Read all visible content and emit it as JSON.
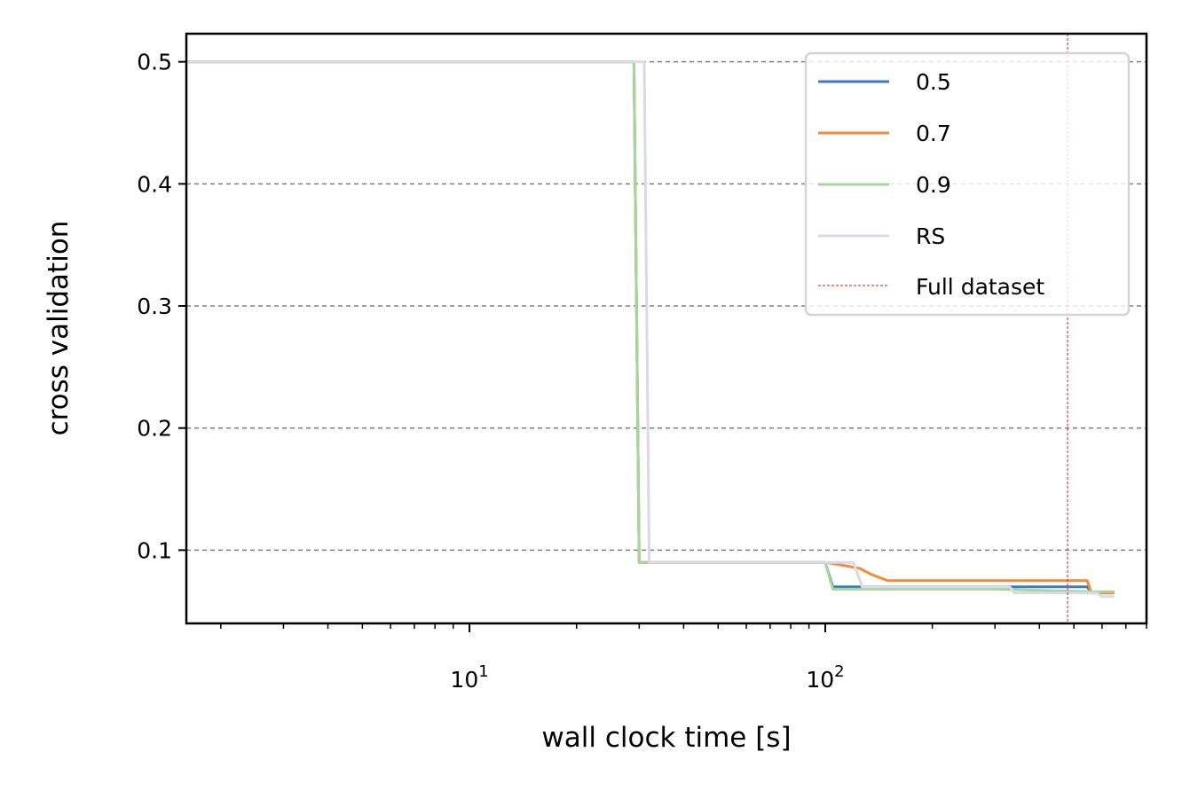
{
  "chart_data": {
    "type": "line",
    "xlabel": "wall clock time [s]",
    "ylabel": "cross validation",
    "xscale": "log",
    "xlim": [
      1.6,
      800
    ],
    "ylim": [
      0.04,
      0.523
    ],
    "grid": "y-dashed",
    "legend_position": "top-right",
    "x_tick_labels": [
      {
        "value": 10,
        "base": "10",
        "exp": "1"
      },
      {
        "value": 100,
        "base": "10",
        "exp": "2"
      }
    ],
    "y_ticks": [
      0.1,
      0.2,
      0.3,
      0.4,
      0.5
    ],
    "y_tick_labels": [
      "0.1",
      "0.2",
      "0.3",
      "0.4",
      "0.5"
    ],
    "series": [
      {
        "name": "0.5",
        "color": "#3a7dbd",
        "points": [
          [
            1.6,
            0.5
          ],
          [
            29,
            0.5
          ],
          [
            30,
            0.09
          ],
          [
            100,
            0.09
          ],
          [
            105,
            0.07
          ],
          [
            300,
            0.07
          ],
          [
            545,
            0.07
          ],
          [
            560,
            0.065
          ],
          [
            650,
            0.065
          ]
        ]
      },
      {
        "name": "0.7",
        "color": "#f58a3a",
        "points": [
          [
            1.6,
            0.5
          ],
          [
            29,
            0.5
          ],
          [
            30,
            0.09
          ],
          [
            100,
            0.09
          ],
          [
            110,
            0.088
          ],
          [
            125,
            0.085
          ],
          [
            135,
            0.08
          ],
          [
            150,
            0.075
          ],
          [
            545,
            0.075
          ],
          [
            560,
            0.065
          ],
          [
            650,
            0.065
          ]
        ]
      },
      {
        "name": "0.9",
        "color": "#a5d69b",
        "points": [
          [
            1.6,
            0.5
          ],
          [
            29,
            0.5
          ],
          [
            30,
            0.09
          ],
          [
            100,
            0.09
          ],
          [
            105,
            0.068
          ],
          [
            300,
            0.068
          ],
          [
            560,
            0.066
          ],
          [
            650,
            0.066
          ]
        ]
      },
      {
        "name": "RS",
        "color": "#d9d9e8",
        "points": [
          [
            1.6,
            0.5
          ],
          [
            31,
            0.5
          ],
          [
            32,
            0.09
          ],
          [
            120,
            0.09
          ],
          [
            127,
            0.07
          ],
          [
            330,
            0.07
          ],
          [
            340,
            0.065
          ],
          [
            580,
            0.065
          ],
          [
            600,
            0.062
          ],
          [
            650,
            0.062
          ]
        ]
      }
    ],
    "vline": {
      "name": "Full dataset",
      "x": 480,
      "color": "#e8191b",
      "style": "dotted"
    }
  }
}
